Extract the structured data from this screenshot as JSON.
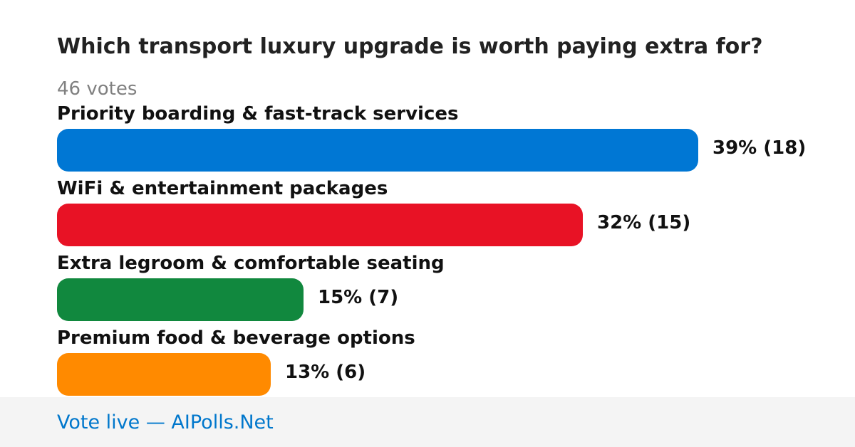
{
  "poll": {
    "title": "Which transport luxury upgrade is worth paying extra for?",
    "votes_label": "46 votes"
  },
  "chart_data": {
    "type": "bar",
    "orientation": "horizontal",
    "categories": [
      "Priority boarding & fast-track services",
      "WiFi & entertainment packages",
      "Extra legroom & comfortable seating",
      "Premium food & beverage options"
    ],
    "series": [
      {
        "values": [
          39,
          32,
          15,
          13
        ]
      }
    ],
    "counts": [
      18,
      15,
      7,
      6
    ],
    "value_labels": [
      "39% (18)",
      "32% (15)",
      "15% (7)",
      "13% (6)"
    ],
    "colors": [
      "#0077d4",
      "#e81225",
      "#11883e",
      "#ff8a00"
    ],
    "title": "Which transport luxury upgrade is worth paying extra for?",
    "xlim": [
      0,
      39
    ],
    "grid": false
  },
  "footer": {
    "link_text": "Vote live — AIPolls.Net"
  }
}
